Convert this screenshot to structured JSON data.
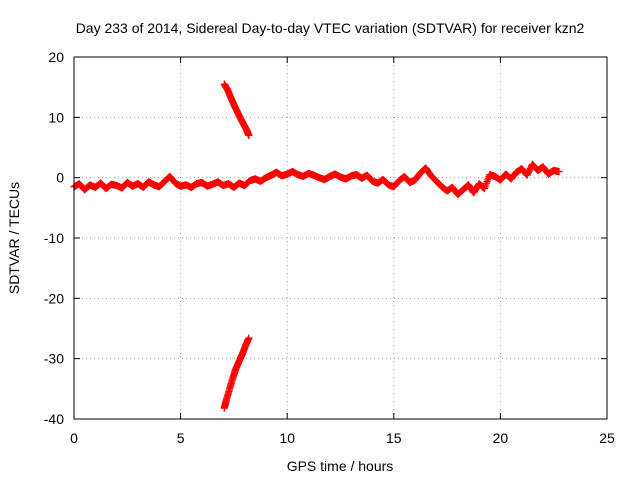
{
  "chart_data": {
    "type": "scatter",
    "title": "Day 233 of 2014, Sidereal Day-to-day VTEC variation (SDTVAR) for receiver kzn2",
    "xlabel": "GPS time / hours",
    "ylabel": "SDTVAR / TECUs",
    "xlim": [
      0,
      25
    ],
    "ylim": [
      -40,
      20
    ],
    "xticks": [
      0,
      5,
      10,
      15,
      20,
      25
    ],
    "yticks": [
      -40,
      -30,
      -20,
      -10,
      0,
      10,
      20
    ],
    "x_tick_labels": [
      "0",
      "5",
      "10",
      "15",
      "20",
      "25"
    ],
    "y_tick_labels": [
      "-40",
      "-30",
      "-20",
      "-10",
      "0",
      "10",
      "20"
    ],
    "grid": true,
    "marker": "+",
    "color": "#ff0000",
    "series": [
      {
        "name": "main-band",
        "x": [
          0.0,
          0.25,
          0.5,
          0.75,
          1.0,
          1.25,
          1.5,
          1.75,
          2.0,
          2.25,
          2.5,
          2.75,
          3.0,
          3.25,
          3.5,
          3.75,
          4.0,
          4.25,
          4.5,
          4.75,
          5.0,
          5.25,
          5.5,
          5.75,
          6.0,
          6.25,
          6.5,
          6.75,
          7.0,
          7.25,
          7.5,
          7.75,
          8.0,
          8.25,
          8.5,
          8.75,
          9.0,
          9.25,
          9.5,
          9.75,
          10.0,
          10.25,
          10.5,
          10.75,
          11.0,
          11.25,
          11.5,
          11.75,
          12.0,
          12.25,
          12.5,
          12.75,
          13.0,
          13.25,
          13.5,
          13.75,
          14.0,
          14.25,
          14.5,
          14.75,
          15.0,
          15.25,
          15.5,
          15.75,
          16.0,
          16.25,
          16.5,
          16.75,
          17.0,
          17.25,
          17.5,
          17.75,
          18.0,
          18.25,
          18.5,
          18.75,
          19.0,
          19.25,
          19.5,
          19.75,
          20.0,
          20.25,
          20.5,
          20.75,
          21.0,
          21.25,
          21.5,
          21.75,
          22.0,
          22.25,
          22.5,
          22.75
        ],
        "y": [
          -1.5,
          -1.0,
          -2.0,
          -1.2,
          -1.6,
          -0.9,
          -1.8,
          -1.1,
          -1.3,
          -1.7,
          -0.8,
          -1.4,
          -1.0,
          -1.6,
          -0.7,
          -1.2,
          -1.5,
          -0.6,
          0.2,
          -0.9,
          -1.4,
          -1.2,
          -1.6,
          -1.0,
          -0.8,
          -1.4,
          -1.1,
          -0.7,
          -1.3,
          -1.0,
          -1.6,
          -0.9,
          -1.3,
          -0.5,
          -0.2,
          -0.6,
          0.0,
          0.4,
          0.9,
          0.3,
          0.6,
          1.0,
          0.5,
          0.2,
          0.7,
          0.4,
          0.0,
          -0.3,
          0.2,
          0.6,
          0.1,
          -0.2,
          0.3,
          0.5,
          -0.1,
          0.4,
          -0.6,
          -0.9,
          -0.3,
          -1.2,
          -1.5,
          -0.5,
          0.2,
          -0.8,
          -0.4,
          0.8,
          1.6,
          0.3,
          -0.6,
          -1.5,
          -2.2,
          -1.6,
          -2.8,
          -2.0,
          -1.2,
          -2.5,
          -1.0,
          -1.8,
          0.5,
          0.2,
          -0.4,
          0.6,
          -0.2,
          0.9,
          1.5,
          0.4,
          2.2,
          1.2,
          1.8,
          0.6,
          1.2,
          1.0
        ]
      },
      {
        "name": "upper-arc",
        "x": [
          7.05,
          7.2,
          7.35,
          7.5,
          7.65,
          7.8,
          7.95,
          8.1,
          8.2
        ],
        "y": [
          15.5,
          14.6,
          13.3,
          12.1,
          11.0,
          9.9,
          8.9,
          7.9,
          7.0
        ]
      },
      {
        "name": "lower-arc",
        "x": [
          7.05,
          7.15,
          7.3,
          7.45,
          7.6,
          7.75,
          7.9,
          8.05,
          8.2
        ],
        "y": [
          -38.2,
          -36.8,
          -35.0,
          -33.2,
          -31.6,
          -30.4,
          -29.2,
          -27.8,
          -26.6
        ]
      }
    ]
  }
}
